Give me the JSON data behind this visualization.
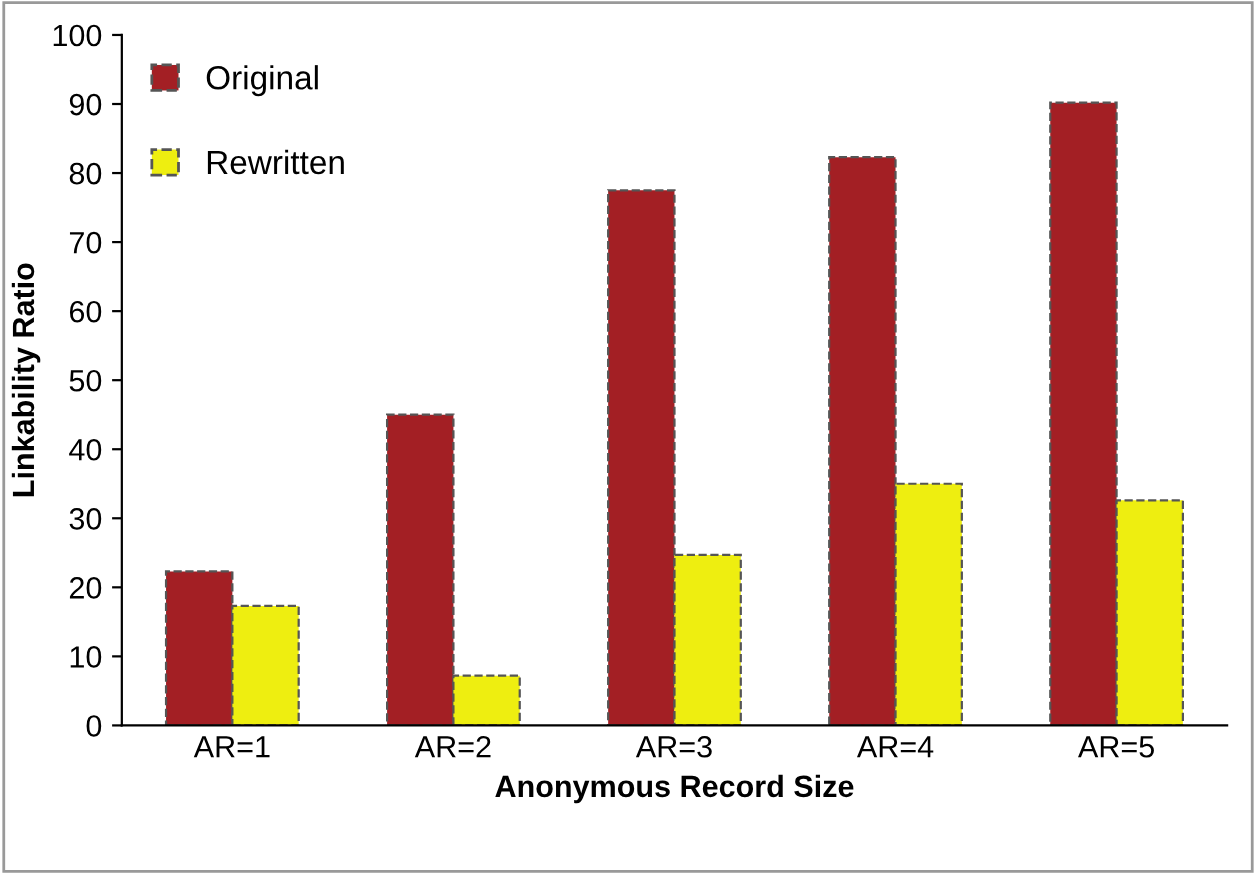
{
  "chart_data": {
    "type": "bar",
    "xlabel": "Anonymous Record Size",
    "ylabel": "Linkability Ratio",
    "categories": [
      "AR=1",
      "AR=2",
      "AR=3",
      "AR=4",
      "AR=5"
    ],
    "series": [
      {
        "name": "Original",
        "color": "#a31f24",
        "values": [
          22.3,
          45,
          77.5,
          82.3,
          90.2
        ]
      },
      {
        "name": "Rewritten",
        "color": "#eeee10",
        "values": [
          17.3,
          7.2,
          24.7,
          35,
          32.6
        ]
      }
    ],
    "ylim": [
      0,
      100
    ],
    "yticks": [
      0,
      10,
      20,
      30,
      40,
      50,
      60,
      70,
      80,
      90,
      100
    ],
    "grid": false,
    "legend": "top left"
  }
}
